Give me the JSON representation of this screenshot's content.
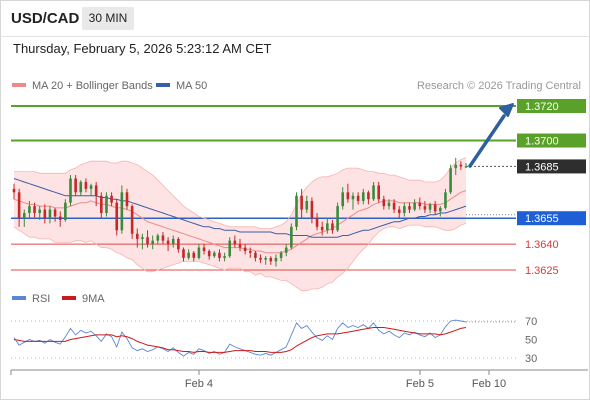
{
  "header": {
    "symbol": "USD/CAD",
    "timeframe": "30 MIN"
  },
  "datetime": "Thursday, February 5, 2026 5:23:12 AM CET",
  "legend": {
    "bb_label": "MA 20 + Bollinger Bands",
    "ma50_label": "MA 50"
  },
  "credit": "Research © 2026 Trading Central",
  "rsi_legend": {
    "rsi_label": "RSI",
    "ma_label": "9MA"
  },
  "colors": {
    "up": "#3a8a3e",
    "down": "#c62828",
    "level_green": "#5aa12a",
    "level_red": "#e04848",
    "ma50": "#3b5ea8",
    "bb": "#f08a8a",
    "rsi": "#5b86d6",
    "rsi_ma": "#cc1a1a",
    "arrow": "#2e5f9e"
  },
  "chart_data": [
    {
      "type": "candlestick",
      "levels": [
        {
          "value": "1.3720",
          "kind": "target"
        },
        {
          "value": "1.3700",
          "kind": "target"
        },
        {
          "value": "1.3685",
          "kind": "current"
        },
        {
          "value": "1.3655",
          "kind": "pivot"
        },
        {
          "value": "1.3640",
          "kind": "support"
        },
        {
          "value": "1.3625",
          "kind": "support"
        }
      ],
      "x_ticks": [
        "Feb 4",
        "Feb 5",
        "Feb 10"
      ],
      "price_range": [
        1.3617,
        1.3725
      ],
      "ohlc": [
        [
          1.3672,
          1.3675,
          1.3666,
          1.367
        ],
        [
          1.367,
          1.3672,
          1.365,
          1.3655
        ],
        [
          1.3655,
          1.366,
          1.365,
          1.3658
        ],
        [
          1.3658,
          1.3665,
          1.3655,
          1.3662
        ],
        [
          1.3662,
          1.3664,
          1.3655,
          1.3658
        ],
        [
          1.3658,
          1.3662,
          1.3654,
          1.366
        ],
        [
          1.366,
          1.3663,
          1.3652,
          1.3655
        ],
        [
          1.3655,
          1.3662,
          1.3652,
          1.366
        ],
        [
          1.366,
          1.3661,
          1.3653,
          1.3656
        ],
        [
          1.3656,
          1.3659,
          1.365,
          1.3654
        ],
        [
          1.3654,
          1.3666,
          1.3653,
          1.3664
        ],
        [
          1.3664,
          1.368,
          1.3662,
          1.3678
        ],
        [
          1.3678,
          1.368,
          1.3668,
          1.367
        ],
        [
          1.367,
          1.3677,
          1.3668,
          1.3676
        ],
        [
          1.3676,
          1.3678,
          1.367,
          1.3672
        ],
        [
          1.3672,
          1.3675,
          1.3668,
          1.3674
        ],
        [
          1.3674,
          1.3676,
          1.3662,
          1.3668
        ],
        [
          1.3668,
          1.367,
          1.3655,
          1.3658
        ],
        [
          1.3658,
          1.367,
          1.3656,
          1.3668
        ],
        [
          1.3668,
          1.367,
          1.3662,
          1.3664
        ],
        [
          1.3664,
          1.3666,
          1.3645,
          1.3648
        ],
        [
          1.3648,
          1.3674,
          1.3646,
          1.367
        ],
        [
          1.367,
          1.3672,
          1.366,
          1.3662
        ],
        [
          1.3662,
          1.3663,
          1.3643,
          1.3646
        ],
        [
          1.3646,
          1.3649,
          1.3638,
          1.3643
        ],
        [
          1.3643,
          1.3646,
          1.3637,
          1.3644
        ],
        [
          1.3644,
          1.3648,
          1.3638,
          1.364
        ],
        [
          1.364,
          1.3645,
          1.3637,
          1.3642
        ],
        [
          1.3642,
          1.3646,
          1.364,
          1.3645
        ],
        [
          1.3645,
          1.3647,
          1.364,
          1.3642
        ],
        [
          1.3642,
          1.3644,
          1.3636,
          1.364
        ],
        [
          1.364,
          1.3645,
          1.3638,
          1.3643
        ],
        [
          1.3643,
          1.3644,
          1.3635,
          1.3637
        ],
        [
          1.3637,
          1.3638,
          1.363,
          1.3632
        ],
        [
          1.3632,
          1.3637,
          1.3631,
          1.3635
        ],
        [
          1.3635,
          1.3636,
          1.363,
          1.3632
        ],
        [
          1.3632,
          1.364,
          1.3631,
          1.3638
        ],
        [
          1.3638,
          1.364,
          1.3634,
          1.3636
        ],
        [
          1.3636,
          1.3637,
          1.3631,
          1.3633
        ],
        [
          1.3633,
          1.3636,
          1.3632,
          1.3635
        ],
        [
          1.3635,
          1.3637,
          1.363,
          1.3632
        ],
        [
          1.3632,
          1.3635,
          1.363,
          1.3633
        ],
        [
          1.3633,
          1.3644,
          1.3632,
          1.3642
        ],
        [
          1.3642,
          1.3645,
          1.3638,
          1.364
        ],
        [
          1.364,
          1.3643,
          1.3636,
          1.3638
        ],
        [
          1.3638,
          1.364,
          1.3634,
          1.3636
        ],
        [
          1.3636,
          1.3638,
          1.3632,
          1.3635
        ],
        [
          1.3635,
          1.3636,
          1.363,
          1.3632
        ],
        [
          1.3632,
          1.3634,
          1.3629,
          1.3631
        ],
        [
          1.3631,
          1.3633,
          1.3628,
          1.3632
        ],
        [
          1.3632,
          1.3633,
          1.3628,
          1.363
        ],
        [
          1.363,
          1.3634,
          1.3627,
          1.3632
        ],
        [
          1.3632,
          1.3636,
          1.363,
          1.3635
        ],
        [
          1.3635,
          1.364,
          1.3633,
          1.3638
        ],
        [
          1.3638,
          1.3652,
          1.3637,
          1.365
        ],
        [
          1.365,
          1.367,
          1.3648,
          1.3668
        ],
        [
          1.3668,
          1.3672,
          1.3655,
          1.366
        ],
        [
          1.366,
          1.3668,
          1.3658,
          1.3665
        ],
        [
          1.3665,
          1.3667,
          1.3652,
          1.3655
        ],
        [
          1.3655,
          1.3658,
          1.3648,
          1.365
        ],
        [
          1.365,
          1.3653,
          1.3645,
          1.3648
        ],
        [
          1.3648,
          1.3655,
          1.3646,
          1.3652
        ],
        [
          1.3652,
          1.3654,
          1.3646,
          1.3648
        ],
        [
          1.3648,
          1.3664,
          1.3647,
          1.3662
        ],
        [
          1.3662,
          1.3673,
          1.366,
          1.367
        ],
        [
          1.367,
          1.3675,
          1.3664,
          1.3666
        ],
        [
          1.3666,
          1.367,
          1.366,
          1.3668
        ],
        [
          1.3668,
          1.367,
          1.3663,
          1.3665
        ],
        [
          1.3665,
          1.3672,
          1.3663,
          1.367
        ],
        [
          1.367,
          1.3671,
          1.3663,
          1.3666
        ],
        [
          1.3666,
          1.3676,
          1.3665,
          1.3674
        ],
        [
          1.3674,
          1.3676,
          1.3664,
          1.3666
        ],
        [
          1.3666,
          1.3668,
          1.366,
          1.3662
        ],
        [
          1.3662,
          1.3666,
          1.366,
          1.3664
        ],
        [
          1.3664,
          1.3666,
          1.3658,
          1.366
        ],
        [
          1.366,
          1.3662,
          1.3655,
          1.3658
        ],
        [
          1.3658,
          1.3664,
          1.3656,
          1.3662
        ],
        [
          1.3662,
          1.3664,
          1.3658,
          1.366
        ],
        [
          1.366,
          1.3666,
          1.3659,
          1.3664
        ],
        [
          1.3664,
          1.3667,
          1.366,
          1.3662
        ],
        [
          1.3662,
          1.3665,
          1.3658,
          1.366
        ],
        [
          1.366,
          1.3664,
          1.3658,
          1.3663
        ],
        [
          1.3663,
          1.3665,
          1.3657,
          1.3659
        ],
        [
          1.3659,
          1.3662,
          1.3656,
          1.3661
        ],
        [
          1.3661,
          1.3672,
          1.366,
          1.367
        ],
        [
          1.367,
          1.3686,
          1.3669,
          1.3684
        ],
        [
          1.3684,
          1.369,
          1.368,
          1.3686
        ],
        [
          1.3686,
          1.3688,
          1.3683,
          1.3685
        ],
        [
          1.3685,
          1.3687,
          1.3684,
          1.3685
        ]
      ],
      "ma20": [
        1.3666,
        1.3665,
        1.3664,
        1.3663,
        1.3663,
        1.3662,
        1.3662,
        1.3662,
        1.3661,
        1.3661,
        1.3661,
        1.3662,
        1.3663,
        1.3664,
        1.3664,
        1.3665,
        1.3664,
        1.3663,
        1.3663,
        1.3662,
        1.3661,
        1.3661,
        1.366,
        1.3659,
        1.3657,
        1.3655,
        1.3653,
        1.3652,
        1.3651,
        1.365,
        1.3649,
        1.3648,
        1.3647,
        1.3646,
        1.3645,
        1.3644,
        1.3643,
        1.3642,
        1.3641,
        1.364,
        1.3639,
        1.3638,
        1.3638,
        1.3638,
        1.3638,
        1.3637,
        1.3637,
        1.3636,
        1.3636,
        1.3635,
        1.3635,
        1.3635,
        1.3635,
        1.3636,
        1.3637,
        1.3639,
        1.3641,
        1.3643,
        1.3645,
        1.3646,
        1.3647,
        1.3648,
        1.3649,
        1.3651,
        1.3653,
        1.3655,
        1.3657,
        1.3659,
        1.366,
        1.3661,
        1.3663,
        1.3664,
        1.3665,
        1.3665,
        1.3665,
        1.3664,
        1.3664,
        1.3664,
        1.3664,
        1.3664,
        1.3663,
        1.3663,
        1.3663,
        1.3663,
        1.3664,
        1.3666,
        1.3668,
        1.367,
        1.3671
      ],
      "ma50": [
        1.3678,
        1.3677,
        1.3676,
        1.3675,
        1.3674,
        1.3673,
        1.3672,
        1.3671,
        1.367,
        1.3669,
        1.3668,
        1.3668,
        1.3668,
        1.3668,
        1.3668,
        1.3668,
        1.3668,
        1.3667,
        1.3667,
        1.3666,
        1.3666,
        1.3665,
        1.3665,
        1.3664,
        1.3663,
        1.3662,
        1.3661,
        1.366,
        1.3659,
        1.3658,
        1.3657,
        1.3656,
        1.3655,
        1.3654,
        1.3653,
        1.3652,
        1.3651,
        1.365,
        1.365,
        1.3649,
        1.3649,
        1.3648,
        1.3648,
        1.3648,
        1.3647,
        1.3647,
        1.3647,
        1.3647,
        1.3647,
        1.3647,
        1.3647,
        1.3646,
        1.3646,
        1.3646,
        1.3645,
        1.3645,
        1.3645,
        1.3645,
        1.3644,
        1.3644,
        1.3644,
        1.3644,
        1.3644,
        1.3644,
        1.3645,
        1.3645,
        1.3646,
        1.3647,
        1.3648,
        1.3648,
        1.3649,
        1.365,
        1.3651,
        1.3652,
        1.3653,
        1.3653,
        1.3654,
        1.3655,
        1.3655,
        1.3656,
        1.3656,
        1.3657,
        1.3657,
        1.3658,
        1.3658,
        1.3659,
        1.366,
        1.3661,
        1.3662
      ],
      "bb_upper": [
        1.3682,
        1.3682,
        1.3682,
        1.3682,
        1.3682,
        1.3681,
        1.3681,
        1.3681,
        1.3681,
        1.3681,
        1.3681,
        1.3683,
        1.3684,
        1.3686,
        1.3687,
        1.3688,
        1.3688,
        1.3688,
        1.3688,
        1.3687,
        1.3687,
        1.3688,
        1.3688,
        1.3687,
        1.3686,
        1.3684,
        1.3682,
        1.368,
        1.3677,
        1.3674,
        1.3671,
        1.3668,
        1.3665,
        1.3662,
        1.366,
        1.3658,
        1.3656,
        1.3655,
        1.3654,
        1.3653,
        1.3652,
        1.3651,
        1.365,
        1.365,
        1.365,
        1.365,
        1.365,
        1.365,
        1.3649,
        1.3649,
        1.3649,
        1.365,
        1.3651,
        1.3653,
        1.3657,
        1.3663,
        1.3669,
        1.3673,
        1.3676,
        1.3678,
        1.3679,
        1.3679,
        1.368,
        1.3681,
        1.3683,
        1.3684,
        1.3684,
        1.3684,
        1.3683,
        1.3682,
        1.3682,
        1.3681,
        1.3681,
        1.368,
        1.368,
        1.3679,
        1.3678,
        1.3677,
        1.3677,
        1.3677,
        1.3676,
        1.3676,
        1.3676,
        1.3677,
        1.368,
        1.3684,
        1.3687,
        1.3689,
        1.369
      ],
      "bb_lower": [
        1.365,
        1.3648,
        1.3646,
        1.3644,
        1.3644,
        1.3643,
        1.3643,
        1.3643,
        1.3641,
        1.3641,
        1.3641,
        1.3641,
        1.3642,
        1.3642,
        1.3641,
        1.3642,
        1.364,
        1.3638,
        1.3638,
        1.3637,
        1.3635,
        1.3634,
        1.3632,
        1.3631,
        1.3628,
        1.3626,
        1.3624,
        1.3624,
        1.3625,
        1.3626,
        1.3627,
        1.3628,
        1.3629,
        1.363,
        1.363,
        1.363,
        1.363,
        1.3629,
        1.3628,
        1.3627,
        1.3626,
        1.3625,
        1.3626,
        1.3626,
        1.3626,
        1.3624,
        1.3624,
        1.3622,
        1.3623,
        1.3621,
        1.3621,
        1.362,
        1.3619,
        1.3619,
        1.3617,
        1.3615,
        1.3613,
        1.3613,
        1.3614,
        1.3614,
        1.3615,
        1.3617,
        1.3618,
        1.3621,
        1.3623,
        1.3626,
        1.363,
        1.3634,
        1.3637,
        1.364,
        1.3644,
        1.3647,
        1.3649,
        1.365,
        1.365,
        1.3649,
        1.365,
        1.3651,
        1.3651,
        1.3651,
        1.365,
        1.365,
        1.365,
        1.3649,
        1.3648,
        1.3648,
        1.3649,
        1.3651,
        1.3652
      ]
    },
    {
      "type": "line",
      "y_ticks": [
        "70",
        "50",
        "30"
      ],
      "ylim": [
        20,
        80
      ],
      "rsi": [
        52,
        44,
        47,
        50,
        48,
        49,
        46,
        50,
        47,
        45,
        53,
        62,
        55,
        60,
        57,
        59,
        54,
        48,
        56,
        53,
        42,
        58,
        51,
        41,
        38,
        40,
        37,
        39,
        42,
        40,
        37,
        41,
        36,
        32,
        36,
        34,
        40,
        38,
        35,
        37,
        34,
        36,
        45,
        42,
        40,
        38,
        36,
        34,
        33,
        35,
        33,
        36,
        39,
        42,
        55,
        68,
        62,
        65,
        58,
        52,
        49,
        54,
        50,
        62,
        68,
        63,
        65,
        63,
        66,
        62,
        68,
        60,
        56,
        59,
        55,
        52,
        57,
        55,
        58,
        55,
        53,
        57,
        52,
        55,
        64,
        70,
        71,
        70,
        69
      ],
      "rsi_ma": [
        50,
        49,
        48,
        48,
        48,
        48,
        48,
        48,
        48,
        48,
        48,
        50,
        51,
        52,
        53,
        54,
        55,
        55,
        55,
        55,
        53,
        54,
        53,
        51,
        48,
        46,
        44,
        43,
        42,
        41,
        39,
        39,
        38,
        37,
        37,
        36,
        37,
        37,
        36,
        36,
        36,
        36,
        37,
        38,
        38,
        38,
        38,
        37,
        37,
        37,
        36,
        36,
        36,
        37,
        39,
        43,
        46,
        49,
        52,
        54,
        55,
        56,
        56,
        56,
        57,
        58,
        59,
        60,
        61,
        62,
        63,
        63,
        63,
        62,
        61,
        60,
        59,
        58,
        57,
        56,
        56,
        56,
        56,
        55,
        56,
        58,
        60,
        62,
        63
      ]
    }
  ]
}
